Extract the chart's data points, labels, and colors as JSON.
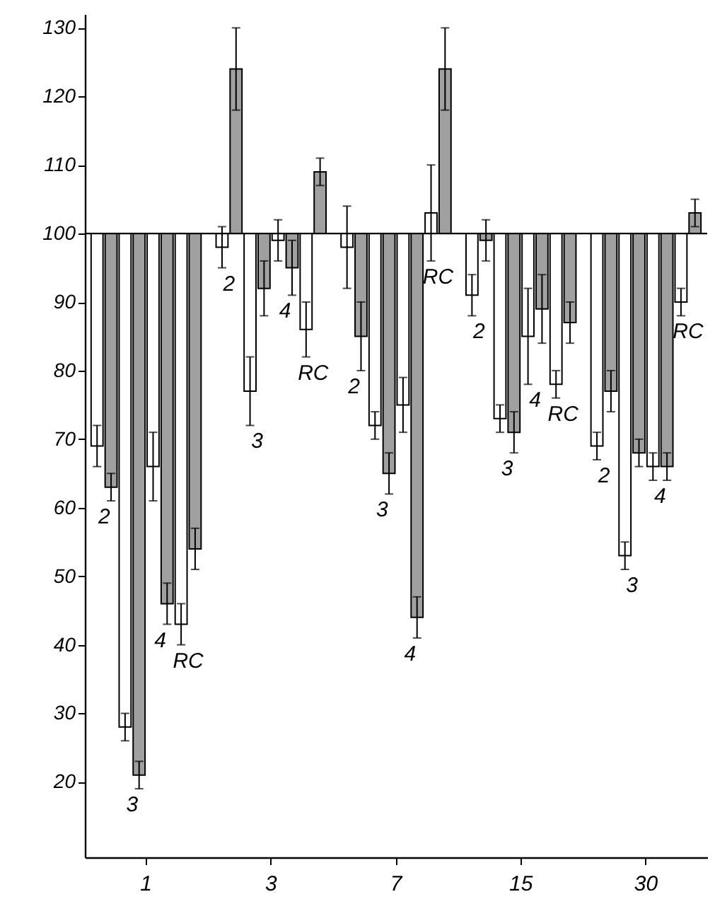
{
  "chart_data": {
    "type": "bar",
    "categories": [
      "1",
      "3",
      "7",
      "15",
      "30"
    ],
    "series": [
      {
        "color": "#ffffff",
        "values": [
          -31,
          -2,
          -2,
          -9,
          -31
        ],
        "base": [
          100,
          100,
          100,
          100,
          100
        ],
        "errors": [
          3,
          3,
          6,
          3,
          2
        ]
      },
      {
        "color": "#a0a0a0",
        "values": [
          -37,
          24,
          -15,
          -1,
          -23
        ],
        "base": [
          100,
          100,
          100,
          100,
          100
        ],
        "errors": [
          2,
          6,
          5,
          3,
          3
        ]
      },
      {
        "color": "#ffffff",
        "values": [
          -72,
          -23,
          -28,
          -27,
          -47
        ],
        "base": [
          100,
          100,
          100,
          100,
          100
        ],
        "errors": [
          2,
          5,
          2,
          2,
          2
        ]
      },
      {
        "color": "#a0a0a0",
        "values": [
          -79,
          -8,
          -35,
          -29,
          -32
        ],
        "base": [
          100,
          100,
          100,
          100,
          100
        ],
        "errors": [
          2,
          4,
          3,
          3,
          2
        ]
      },
      {
        "color": "#ffffff",
        "values": [
          -34,
          -1,
          -25,
          -15,
          -34
        ],
        "base": [
          100,
          100,
          100,
          100,
          100
        ],
        "errors": [
          5,
          3,
          4,
          7,
          2
        ]
      },
      {
        "color": "#a0a0a0",
        "values": [
          -54,
          -5,
          -56,
          -11,
          -34
        ],
        "base": [
          100,
          100,
          100,
          100,
          100
        ],
        "errors": [
          3,
          4,
          3,
          5,
          2
        ]
      },
      {
        "color": "#ffffff",
        "values": [
          -57,
          -14,
          3,
          -22,
          -10
        ],
        "base": [
          100,
          100,
          100,
          100,
          100
        ],
        "errors": [
          3,
          4,
          7,
          2,
          2
        ]
      },
      {
        "color": "#a0a0a0",
        "values": [
          -46,
          9,
          24,
          -13,
          3
        ],
        "base": [
          100,
          100,
          100,
          100,
          100
        ],
        "errors": [
          3,
          2,
          6,
          3,
          2
        ]
      }
    ],
    "ylim": [
      9,
      132
    ],
    "yticks": [
      20,
      30,
      40,
      50,
      60,
      70,
      80,
      90,
      100,
      110,
      120,
      130
    ],
    "ref_lines": [
      {
        "axis": "y",
        "value": 100
      }
    ],
    "annotations": [
      "2",
      "3",
      "4",
      "RC",
      "2",
      "3",
      "4",
      "RC",
      "2",
      "3",
      "4",
      "RC",
      "2",
      "3",
      "4",
      "RC",
      "2",
      "3",
      "4",
      "RC"
    ],
    "grid": false
  }
}
